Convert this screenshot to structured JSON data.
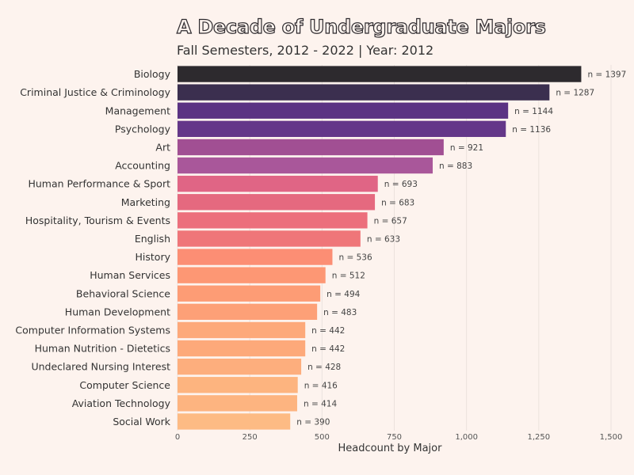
{
  "chart_data": {
    "type": "bar",
    "orientation": "horizontal",
    "title": "A Decade of Undergraduate Majors",
    "subtitle": "Fall Semesters, 2012 - 2022 | Year: 2012",
    "xlabel": "Headcount by Major",
    "ylabel": "",
    "xlim": [
      0,
      1500
    ],
    "ticks": [
      0,
      250,
      500,
      750,
      1000,
      1250,
      1500
    ],
    "tick_labels": [
      "0",
      "250",
      "500",
      "750",
      "1,000",
      "1,250",
      "1,500"
    ],
    "grid": true,
    "categories": [
      "Biology",
      "Criminal Justice & Criminology",
      "Management",
      "Psychology",
      "Art",
      "Accounting",
      "Human Performance & Sport",
      "Marketing",
      "Hospitality, Tourism & Events",
      "English",
      "History",
      "Human Services",
      "Behavioral Science",
      "Human Development",
      "Computer Information Systems",
      "Human Nutrition - Dietetics",
      "Undeclared Nursing Interest",
      "Computer Science",
      "Aviation Technology",
      "Social Work"
    ],
    "values": [
      1397,
      1287,
      1144,
      1136,
      921,
      883,
      693,
      683,
      657,
      633,
      536,
      512,
      494,
      483,
      442,
      442,
      428,
      416,
      414,
      390
    ],
    "value_labels": [
      "n = 1397",
      "n = 1287",
      "n = 1144",
      "n = 1136",
      "n = 921",
      "n = 883",
      "n = 693",
      "n = 683",
      "n = 657",
      "n = 633",
      "n = 536",
      "n = 512",
      "n = 494",
      "n = 483",
      "n = 442",
      "n = 442",
      "n = 428",
      "n = 416",
      "n = 414",
      "n = 390"
    ],
    "colors": [
      "#2d2a2e",
      "#3b2f4f",
      "#5b3383",
      "#643789",
      "#a14f93",
      "#a9579a",
      "#e06585",
      "#e5697f",
      "#ec6f7c",
      "#ef7679",
      "#fc8e74",
      "#fd9774",
      "#fd9c75",
      "#fda077",
      "#fda97a",
      "#fda97a",
      "#fdae7d",
      "#fdb47f",
      "#fdb480",
      "#fdbb84"
    ],
    "background": "#fdf3ee"
  }
}
